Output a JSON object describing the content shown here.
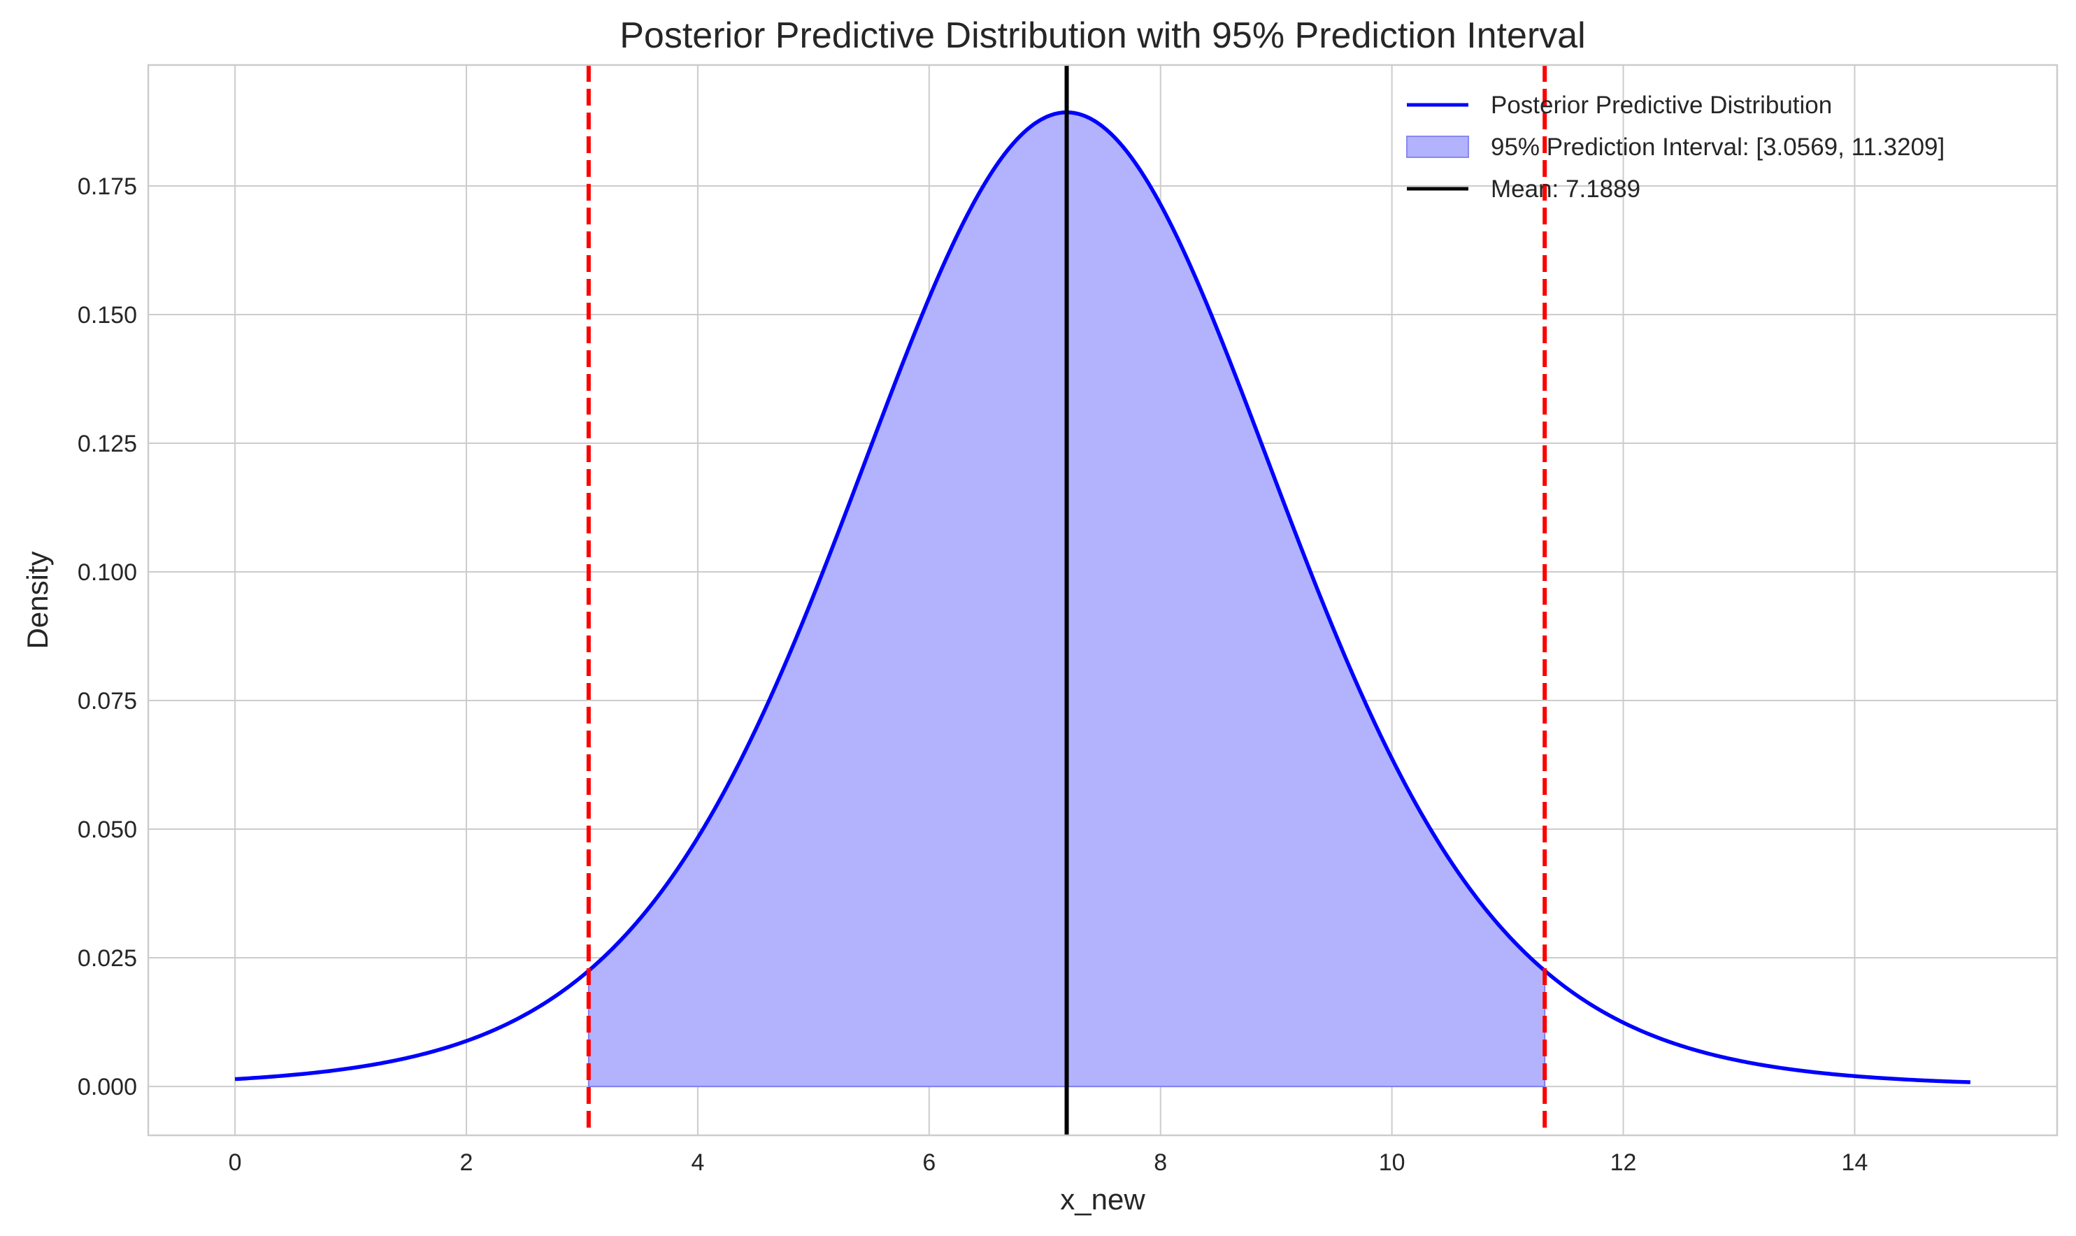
{
  "chart_data": {
    "type": "line",
    "title": "Posterior Predictive Distribution with 95% Prediction Interval",
    "xlabel": "x_new",
    "ylabel": "Density",
    "xlim": [
      -0.75,
      15.75
    ],
    "ylim": [
      -0.0095,
      0.1985
    ],
    "xticks": [
      0,
      2,
      4,
      6,
      8,
      10,
      12,
      14
    ],
    "xtick_labels": [
      "0",
      "2",
      "4",
      "6",
      "8",
      "10",
      "12",
      "14"
    ],
    "yticks": [
      0.0,
      0.025,
      0.05,
      0.075,
      0.1,
      0.125,
      0.15,
      0.175
    ],
    "ytick_labels": [
      "0.000",
      "0.025",
      "0.050",
      "0.075",
      "0.100",
      "0.125",
      "0.150",
      "0.175"
    ],
    "grid": true,
    "legend_position": "top-right",
    "colors": {
      "density": "#0000ff",
      "interval_fill": "#b2b2fd",
      "interval_lines": "#ff0000",
      "mean": "#000000",
      "grid": "#cccccc"
    },
    "series": [
      {
        "name": "Posterior Predictive Distribution",
        "kind": "line",
        "x": [
          0,
          1,
          2,
          3,
          3.0569,
          4,
          5,
          6,
          7,
          7.1889,
          8,
          9,
          10,
          11,
          11.3209,
          12,
          13,
          14,
          15
        ],
        "y": [
          0.0006,
          0.0026,
          0.0092,
          0.0262,
          0.0276,
          0.0605,
          0.1107,
          0.1612,
          0.1885,
          0.1893,
          0.1764,
          0.1315,
          0.0786,
          0.0372,
          0.0276,
          0.0142,
          0.0042,
          0.0011,
          0.0002
        ]
      }
    ],
    "prediction_interval": {
      "label": "95% Prediction Interval: [3.0569, 11.3209]",
      "lower": 3.0569,
      "upper": 11.3209
    },
    "mean": {
      "label": "Mean: 7.1889",
      "value": 7.1889
    }
  }
}
